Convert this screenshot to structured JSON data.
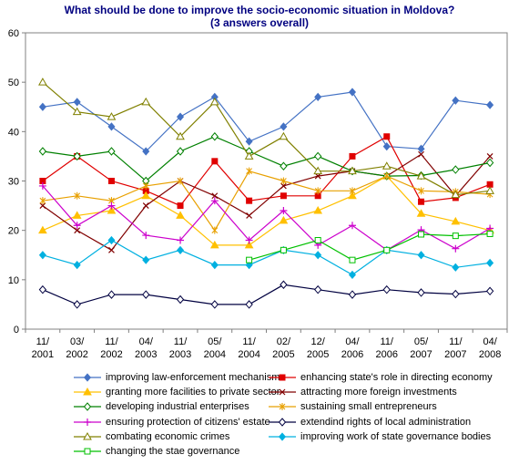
{
  "chart_data": {
    "type": "line",
    "title": "What should be done to improve the socio-economic situation in Moldova?",
    "subtitle": "(3 answers overall)",
    "categories": [
      [
        "11/",
        "2001"
      ],
      [
        "03/",
        "2002"
      ],
      [
        "11/",
        "2002"
      ],
      [
        "04/",
        "2003"
      ],
      [
        "11/",
        "2003"
      ],
      [
        "05/",
        "2004"
      ],
      [
        "11/",
        "2004"
      ],
      [
        "02/",
        "2005"
      ],
      [
        "12/",
        "2005"
      ],
      [
        "04/",
        "2006"
      ],
      [
        "11/",
        "2006"
      ],
      [
        "05/",
        "2007"
      ],
      [
        "11/",
        "2007"
      ],
      [
        "04/",
        "2008"
      ]
    ],
    "ylim": [
      0,
      60
    ],
    "yticks": [
      0,
      10,
      20,
      30,
      40,
      50,
      60
    ],
    "grid": true,
    "legend_position": "bottom",
    "series": [
      {
        "name": "improving law-enforcement mechanisms",
        "color": "#4472C4",
        "marker": "diamond",
        "values": [
          45,
          46,
          41,
          36,
          43,
          47,
          38,
          41,
          47,
          48,
          37,
          36.5,
          46.3,
          45.4
        ]
      },
      {
        "name": "enhancing state's role in directing economy",
        "color": "#E00000",
        "marker": "square",
        "values": [
          30,
          35,
          30,
          28,
          25,
          34,
          26,
          27,
          27,
          35,
          39,
          25.8,
          26.6,
          29.3
        ]
      },
      {
        "name": "granting more facilities to private sector",
        "color": "#FFC000",
        "marker": "triangle",
        "values": [
          20,
          23,
          24,
          27,
          23,
          17,
          17,
          22,
          24,
          27,
          31,
          23.4,
          21.8,
          20
        ]
      },
      {
        "name": "attracting more foreign investments",
        "color": "#800000",
        "marker": "x",
        "values": [
          25,
          20,
          16,
          25,
          30,
          27,
          23,
          29,
          31,
          32,
          31,
          35.4,
          27,
          35
        ]
      },
      {
        "name": "developing industrial enterprises",
        "color": "#008000",
        "marker": "diamond-open",
        "values": [
          36,
          35,
          36,
          30,
          36,
          39,
          36,
          33,
          35,
          32,
          31,
          31.1,
          32.3,
          33.7
        ]
      },
      {
        "name": "sustaining small entrepreneurs",
        "color": "#E8A000",
        "marker": "star",
        "values": [
          26,
          27,
          26,
          29,
          30,
          20,
          32,
          30,
          28,
          28,
          31,
          28,
          27.8,
          27.3
        ]
      },
      {
        "name": "ensuring protection of citizens' estate",
        "color": "#CC00CC",
        "marker": "plus",
        "values": [
          29,
          21,
          25,
          19,
          18,
          26,
          18,
          24,
          17,
          21,
          16,
          20.1,
          16.3,
          20.4
        ]
      },
      {
        "name": "extendind rights of local administration",
        "color": "#000040",
        "marker": "diamond-open",
        "values": [
          8,
          5,
          7,
          7,
          6,
          5,
          5,
          9,
          8,
          7,
          8,
          7.4,
          7.1,
          7.7
        ]
      },
      {
        "name": "combating economic crimes",
        "color": "#808000",
        "marker": "triangle-open",
        "values": [
          50,
          44,
          43,
          46,
          39,
          46,
          35,
          39,
          32,
          32,
          33,
          31,
          27.2,
          28
        ]
      },
      {
        "name": "improving work of state governance bodies",
        "color": "#00B0E0",
        "marker": "diamond",
        "values": [
          15,
          13,
          18,
          14,
          16,
          13,
          13,
          16,
          15,
          11,
          16,
          15,
          12.5,
          13.4
        ]
      },
      {
        "name": "changing the stae governance",
        "color": "#00C000",
        "marker": "square-open",
        "values": [
          null,
          null,
          null,
          null,
          null,
          null,
          14,
          16,
          18,
          14,
          16,
          19.2,
          18.9,
          19.3
        ]
      }
    ]
  }
}
